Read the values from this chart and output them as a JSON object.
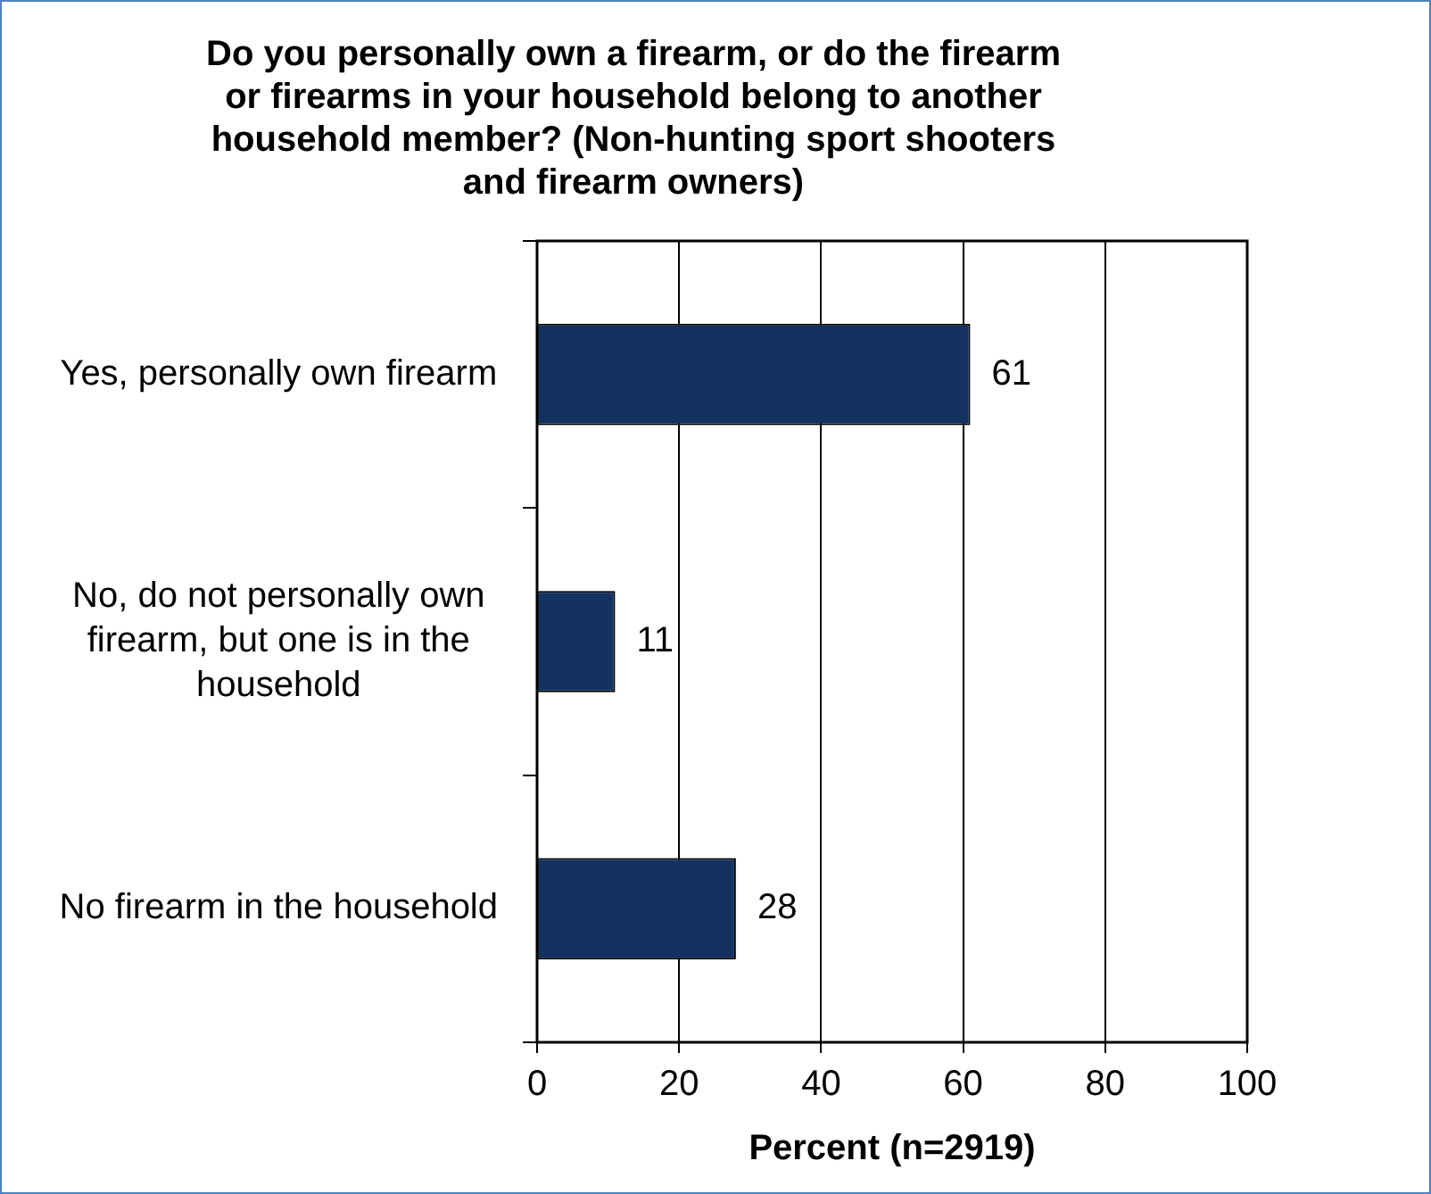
{
  "chart_data": {
    "type": "bar",
    "orientation": "horizontal",
    "title": "Do you personally own a firearm, or do the firearm or firearms in your household belong to another household member? (Non-hunting sport shooters and firearm owners)",
    "xlabel": "Percent (n=2919)",
    "categories": [
      "Yes, personally own firearm",
      "No, do not personally own firearm, but one is in the household",
      "No firearm in the household"
    ],
    "values": [
      61,
      11,
      28
    ],
    "color": "#14325f",
    "xlim": [
      0,
      100
    ],
    "xticks": [
      0,
      20,
      40,
      60,
      80,
      100
    ],
    "grid": "x",
    "data_labels": true,
    "legend": false
  }
}
